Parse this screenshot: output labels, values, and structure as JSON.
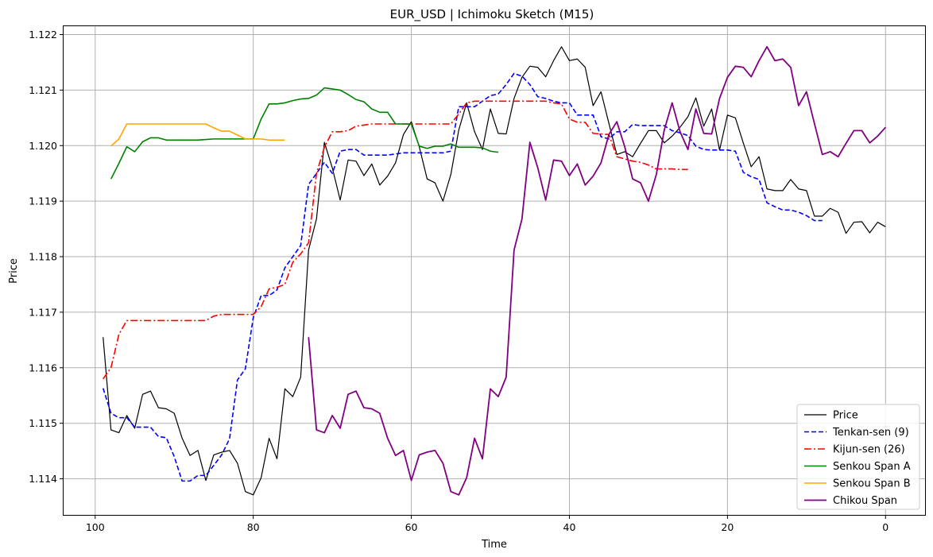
{
  "chart_data": {
    "type": "line",
    "title": "EUR_USD | Ichimoku Sketch (M15)",
    "xlabel": "Time",
    "ylabel": "Price",
    "xlim": [
      104,
      -5
    ],
    "ylim": [
      1.11335,
      1.12215
    ],
    "x_reversed": true,
    "x_ticks": [
      100,
      80,
      60,
      40,
      20,
      0
    ],
    "x_tick_labels": [
      "100",
      "80",
      "60",
      "40",
      "20",
      "0"
    ],
    "y_ticks": [
      1.114,
      1.115,
      1.116,
      1.117,
      1.118,
      1.119,
      1.12,
      1.121,
      1.122
    ],
    "y_tick_labels": [
      "1.114",
      "1.115",
      "1.116",
      "1.117",
      "1.118",
      "1.119",
      "1.120",
      "1.121",
      "1.122"
    ],
    "grid": true,
    "legend_position": "lower-right",
    "series": [
      {
        "name": "Price",
        "color": "#000000",
        "dash": "solid",
        "width": 1.2,
        "x_start": 99,
        "values": [
          1.11655,
          1.11488,
          1.11483,
          1.11514,
          1.11491,
          1.11552,
          1.11558,
          1.11528,
          1.11526,
          1.11518,
          1.11473,
          1.11442,
          1.11451,
          1.11397,
          1.11443,
          1.11448,
          1.11451,
          1.11428,
          1.11377,
          1.11371,
          1.11402,
          1.11473,
          1.11436,
          1.11562,
          1.11548,
          1.11583,
          1.11812,
          1.11868,
          1.12006,
          1.1196,
          1.11902,
          1.11974,
          1.11972,
          1.11946,
          1.11967,
          1.11929,
          1.11945,
          1.11969,
          1.1202,
          1.12043,
          1.11998,
          1.1194,
          1.11933,
          1.119,
          1.11948,
          1.12028,
          1.12077,
          1.12025,
          1.11993,
          1.12066,
          1.12022,
          1.12021,
          1.12085,
          1.12123,
          1.12143,
          1.12141,
          1.12124,
          1.12153,
          1.12178,
          1.12153,
          1.12156,
          1.12141,
          1.12072,
          1.12097,
          1.1204,
          1.11984,
          1.11989,
          1.1198,
          1.12004,
          1.12027,
          1.12027,
          1.12005,
          1.12017,
          1.12033,
          1.12052,
          1.12086,
          1.12035,
          1.12066,
          1.11992,
          1.12055,
          1.1205,
          1.12005,
          1.11962,
          1.1198,
          1.11922,
          1.11919,
          1.11919,
          1.11939,
          1.11922,
          1.11919,
          1.11873,
          1.11873,
          1.11887,
          1.1188,
          1.11842,
          1.11862,
          1.11863,
          1.11843,
          1.11862,
          1.11854
        ]
      },
      {
        "name": "Tenkan-sen (9)",
        "color": "#0000ff",
        "dash": "dashed",
        "width": 1.6,
        "x_start": 99,
        "values": [
          1.11563,
          1.11518,
          1.1151,
          1.1151,
          1.11493,
          1.11493,
          1.11493,
          1.11476,
          1.11474,
          1.1144,
          1.11396,
          1.11396,
          1.11406,
          1.11406,
          1.11424,
          1.11443,
          1.11472,
          1.11578,
          1.11598,
          1.1169,
          1.1173,
          1.1173,
          1.1174,
          1.1178,
          1.118,
          1.1182,
          1.1193,
          1.1195,
          1.1197,
          1.1195,
          1.1199,
          1.11993,
          1.11993,
          1.11983,
          1.11983,
          1.11983,
          1.11983,
          1.11985,
          1.11987,
          1.11987,
          1.11987,
          1.11987,
          1.11987,
          1.11987,
          1.1199,
          1.1207,
          1.1207,
          1.1207,
          1.1208,
          1.1209,
          1.12093,
          1.1211,
          1.1213,
          1.12125,
          1.1211,
          1.12088,
          1.12085,
          1.1208,
          1.12077,
          1.12077,
          1.12055,
          1.12055,
          1.12055,
          1.12016,
          1.12012,
          1.12025,
          1.12025,
          1.12038,
          1.12036,
          1.12036,
          1.12036,
          1.12036,
          1.12027,
          1.12023,
          1.12018,
          1.11999,
          1.11993,
          1.11992,
          1.11992,
          1.11992,
          1.1199,
          1.11952,
          1.11944,
          1.11939,
          1.11897,
          1.1189,
          1.11884,
          1.11884,
          1.1188,
          1.11874,
          1.11865,
          1.11865
        ]
      },
      {
        "name": "Kijun-sen (26)",
        "color": "#ff0000",
        "dash": "dashdot",
        "width": 1.6,
        "x_start": 99,
        "values": [
          1.1158,
          1.116,
          1.1166,
          1.11685,
          1.11685,
          1.11685,
          1.11685,
          1.11685,
          1.11685,
          1.11685,
          1.11685,
          1.11685,
          1.11685,
          1.11685,
          1.11693,
          1.11696,
          1.11696,
          1.11696,
          1.11696,
          1.11696,
          1.1171,
          1.11742,
          1.11745,
          1.1175,
          1.1179,
          1.11805,
          1.11825,
          1.1195,
          1.11997,
          1.12025,
          1.12025,
          1.12027,
          1.12035,
          1.12037,
          1.12039,
          1.12039,
          1.12039,
          1.12039,
          1.12039,
          1.12039,
          1.12039,
          1.12039,
          1.12039,
          1.12039,
          1.12039,
          1.12057,
          1.12077,
          1.1208,
          1.1208,
          1.1208,
          1.1208,
          1.1208,
          1.1208,
          1.1208,
          1.1208,
          1.1208,
          1.1208,
          1.12077,
          1.12075,
          1.12048,
          1.12042,
          1.12042,
          1.12022,
          1.12021,
          1.1202,
          1.1198,
          1.11976,
          1.11972,
          1.1197,
          1.11965,
          1.11958,
          1.11958,
          1.11958,
          1.11957,
          1.11957
        ]
      },
      {
        "name": "Senkou Span A",
        "color": "#008000",
        "dash": "solid",
        "width": 1.6,
        "x_start": 98,
        "values": [
          1.1194,
          1.11968,
          1.11998,
          1.11989,
          1.12007,
          1.12014,
          1.12014,
          1.1201,
          1.1201,
          1.1201,
          1.1201,
          1.1201,
          1.12011,
          1.12012,
          1.12012,
          1.12012,
          1.12012,
          1.12012,
          1.12012,
          1.12048,
          1.12075,
          1.12075,
          1.12077,
          1.12081,
          1.12084,
          1.12085,
          1.12091,
          1.12104,
          1.12102,
          1.121,
          1.12092,
          1.12083,
          1.12079,
          1.12066,
          1.1206,
          1.1206,
          1.12039,
          1.12039,
          1.12039,
          1.11999,
          1.11995,
          1.11999,
          1.11999,
          1.12003,
          1.11997,
          1.11997,
          1.11997,
          1.11996,
          1.1199,
          1.11988
        ]
      },
      {
        "name": "Senkou Span B",
        "color": "#ffa500",
        "dash": "solid",
        "width": 1.6,
        "x_start": 98,
        "values": [
          1.11999,
          1.12012,
          1.12039,
          1.12039,
          1.12039,
          1.12039,
          1.12039,
          1.12039,
          1.12039,
          1.12039,
          1.12039,
          1.12039,
          1.12039,
          1.12032,
          1.12026,
          1.12026,
          1.12019,
          1.12012,
          1.12012,
          1.12012,
          1.1201,
          1.1201,
          1.1201
        ]
      },
      {
        "name": "Chikou Span",
        "color": "#800080",
        "dash": "solid",
        "width": 1.8,
        "x_start": 73,
        "values": [
          1.11655,
          1.11488,
          1.11483,
          1.11514,
          1.11491,
          1.11552,
          1.11558,
          1.11528,
          1.11526,
          1.11518,
          1.11473,
          1.11442,
          1.11451,
          1.11397,
          1.11443,
          1.11448,
          1.11451,
          1.11428,
          1.11377,
          1.11371,
          1.11402,
          1.11473,
          1.11436,
          1.11562,
          1.11548,
          1.11583,
          1.11812,
          1.11868,
          1.12006,
          1.1196,
          1.11902,
          1.11974,
          1.11972,
          1.11946,
          1.11967,
          1.11929,
          1.11945,
          1.11969,
          1.1202,
          1.12043,
          1.11998,
          1.1194,
          1.11933,
          1.119,
          1.11948,
          1.12028,
          1.12077,
          1.12025,
          1.11993,
          1.12066,
          1.12022,
          1.12021,
          1.12085,
          1.12123,
          1.12143,
          1.12141,
          1.12124,
          1.12153,
          1.12178,
          1.12153,
          1.12156,
          1.12141,
          1.12072,
          1.12097,
          1.1204,
          1.11984,
          1.11989,
          1.1198,
          1.12004,
          1.12027,
          1.12027,
          1.12005,
          1.12017,
          1.12033
        ]
      }
    ]
  }
}
